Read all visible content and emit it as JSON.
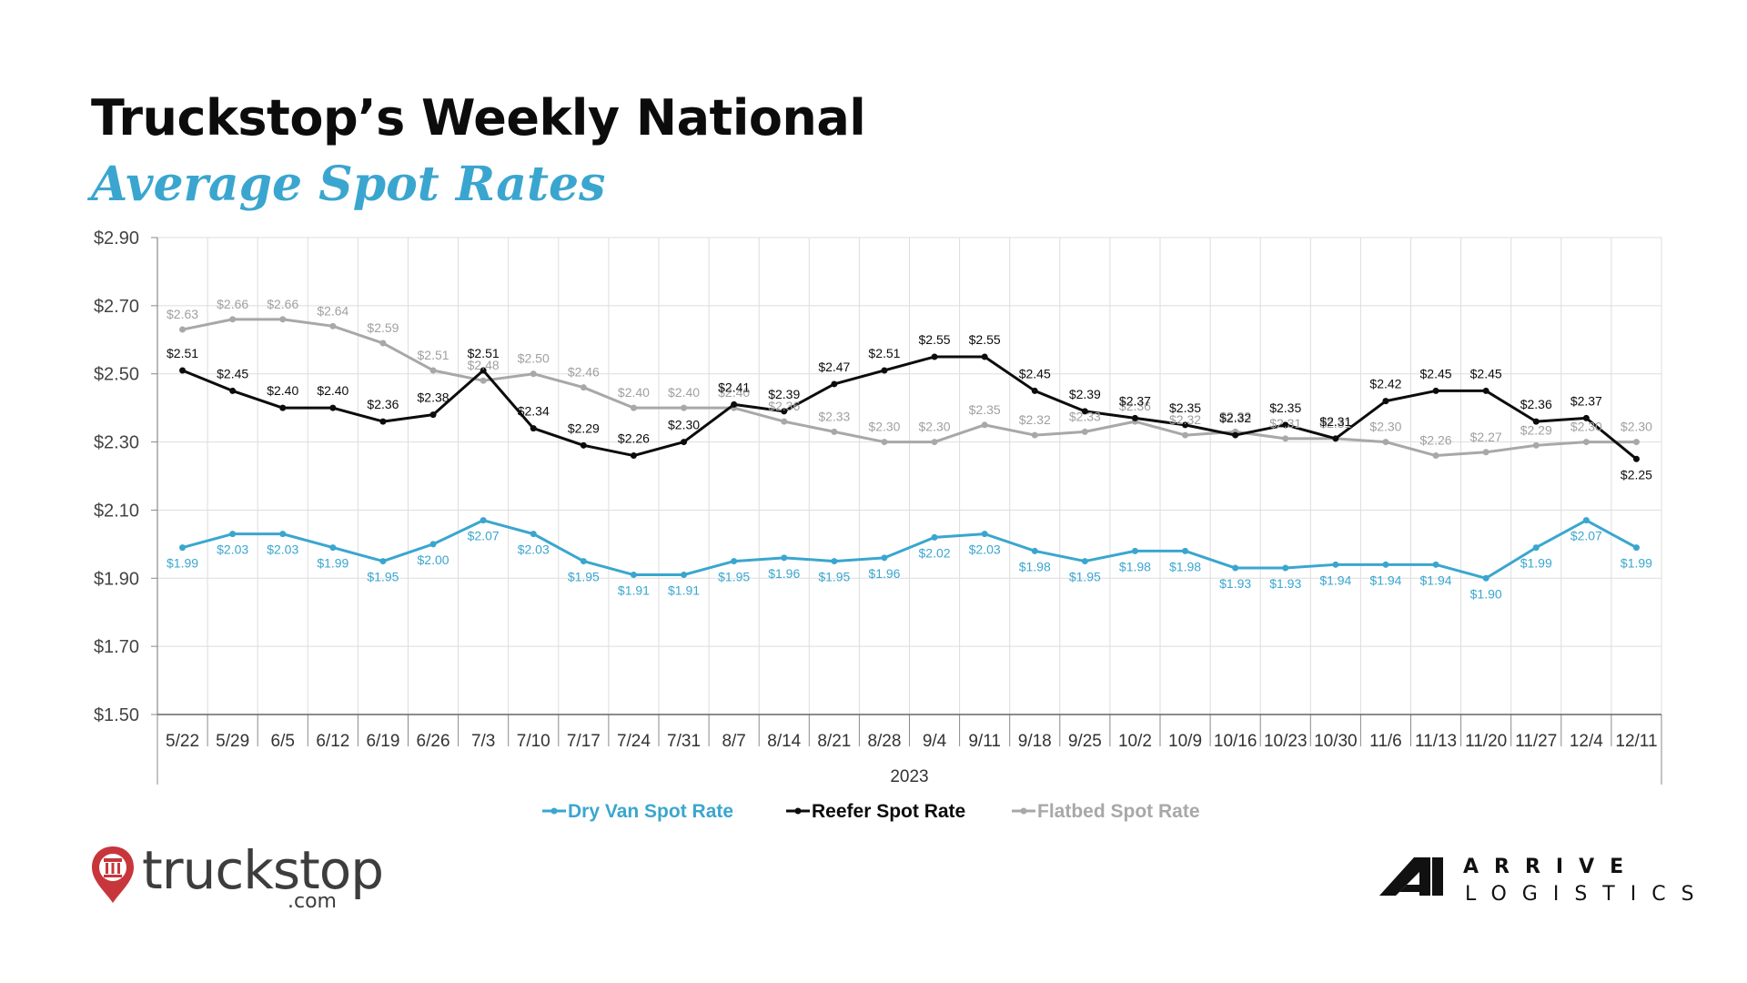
{
  "header": {
    "title_line1": "Truckstop’s Weekly National",
    "title_line2": "Average Spot Rates"
  },
  "chart_data": {
    "type": "line",
    "xlabel": "2023",
    "ylabel": "",
    "ylim": [
      1.5,
      2.9
    ],
    "y_ticks": [
      "$2.90",
      "$2.70",
      "$2.50",
      "$2.30",
      "$2.10",
      "$1.90",
      "$1.70",
      "$1.50"
    ],
    "y_tick_values": [
      2.9,
      2.7,
      2.5,
      2.3,
      2.1,
      1.9,
      1.7,
      1.5
    ],
    "grid": true,
    "legend_position": "bottom",
    "categories": [
      "5/22",
      "5/29",
      "6/5",
      "6/12",
      "6/19",
      "6/26",
      "7/3",
      "7/10",
      "7/17",
      "7/24",
      "7/31",
      "8/7",
      "8/14",
      "8/21",
      "8/28",
      "9/4",
      "9/11",
      "9/18",
      "9/25",
      "10/2",
      "10/9",
      "10/16",
      "10/23",
      "10/30",
      "11/6",
      "11/13",
      "11/20",
      "11/27",
      "12/4",
      "12/11"
    ],
    "series": [
      {
        "name": "Dry Van Spot Rate",
        "color": "#3aa6cf",
        "values": [
          1.99,
          2.03,
          2.03,
          1.99,
          1.95,
          2.0,
          2.07,
          2.03,
          1.95,
          1.91,
          1.91,
          1.95,
          1.96,
          1.95,
          1.96,
          2.02,
          2.03,
          1.98,
          1.95,
          1.98,
          1.98,
          1.93,
          1.93,
          1.94,
          1.94,
          1.94,
          1.9,
          1.99,
          2.07,
          1.99
        ],
        "labels": [
          "$1.99",
          "$2.03",
          "$2.03",
          "$1.99",
          "$1.95",
          "$2.00",
          "$2.07",
          "$2.03",
          "$1.95",
          "$1.91",
          "$1.91",
          "$1.95",
          "$1.96",
          "$1.95",
          "$1.96",
          "$2.02",
          "$2.03",
          "$1.98",
          "$1.95",
          "$1.98",
          "$1.98",
          "$1.93",
          "$1.93",
          "$1.94",
          "$1.94",
          "$1.94",
          "$1.90",
          "$1.99",
          "$2.07",
          "$1.99"
        ]
      },
      {
        "name": "Reefer Spot Rate",
        "color": "#0c0c0c",
        "values": [
          2.51,
          2.45,
          2.4,
          2.4,
          2.36,
          2.38,
          2.51,
          2.34,
          2.29,
          2.26,
          2.3,
          2.41,
          2.39,
          2.47,
          2.51,
          2.55,
          2.55,
          2.45,
          2.39,
          2.37,
          2.35,
          2.32,
          2.35,
          2.31,
          2.42,
          2.45,
          2.45,
          2.36,
          2.37,
          2.25
        ],
        "labels": [
          "$2.51",
          "$2.45",
          "$2.40",
          "$2.40",
          "$2.36",
          "$2.38",
          "$2.51",
          "$2.34",
          "$2.29",
          "$2.26",
          "$2.30",
          "$2.41",
          "$2.39",
          "$2.47",
          "$2.51",
          "$2.55",
          "$2.55",
          "$2.45",
          "$2.39",
          "$2.37",
          "$2.35",
          "$2.32",
          "$2.35",
          "$2.31",
          "$2.42",
          "$2.45",
          "$2.45",
          "$2.36",
          "$2.37",
          "$2.25"
        ]
      },
      {
        "name": "Flatbed Spot Rate",
        "color": "#a8a8a8",
        "values": [
          2.63,
          2.66,
          2.66,
          2.64,
          2.59,
          2.51,
          2.48,
          2.5,
          2.46,
          2.4,
          2.4,
          2.4,
          2.36,
          2.33,
          2.3,
          2.3,
          2.35,
          2.32,
          2.33,
          2.36,
          2.32,
          2.33,
          2.31,
          2.31,
          2.3,
          2.26,
          2.27,
          2.29,
          2.3,
          2.3
        ],
        "labels": [
          "$2.63",
          "$2.66",
          "$2.66",
          "$2.64",
          "$2.59",
          "$2.51",
          "$2.48",
          "$2.50",
          "$2.46",
          "$2.40",
          "$2.40",
          "$2.40",
          "$2.36",
          "$2.33",
          "$2.30",
          "$2.30",
          "$2.35",
          "$2.32",
          "$2.33",
          "$2.36",
          "$2.32",
          "$2.33",
          "$2.31",
          "$2.31",
          "$2.30",
          "$2.26",
          "$2.27",
          "$2.29",
          "$2.30",
          "$2.30"
        ]
      }
    ]
  },
  "logos": {
    "left_brand": "truckstop",
    "left_suffix": ".com",
    "left_icon": "truckstop-pin-icon",
    "right_brand_line1": "ARRIVE",
    "right_brand_line2": "LOGISTICS",
    "right_icon": "arrive-logistics-a-icon"
  }
}
